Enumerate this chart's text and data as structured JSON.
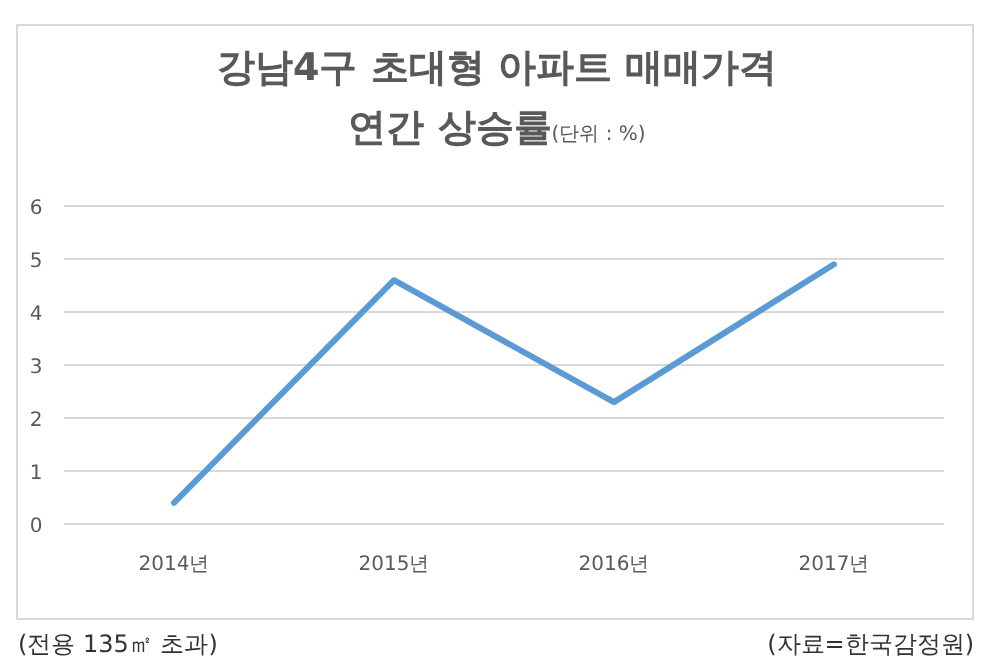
{
  "chart_data": {
    "type": "line",
    "title": "강남4구 초대형 아파트 매매가격 연간 상승률",
    "subtitle": "(단위 : %)",
    "categories": [
      "2014년",
      "2015년",
      "2016년",
      "2017년"
    ],
    "series": [
      {
        "color": "#5b9bd5",
        "values": [
          0.4,
          4.6,
          2.3,
          4.9
        ]
      }
    ],
    "ylim": [
      0,
      6
    ],
    "yticks": [
      0,
      1,
      2,
      3,
      4,
      5,
      6
    ],
    "grid": "y",
    "annotations": [
      "(전용 135㎡ 초과)",
      "(자료=한국감정원)"
    ]
  }
}
